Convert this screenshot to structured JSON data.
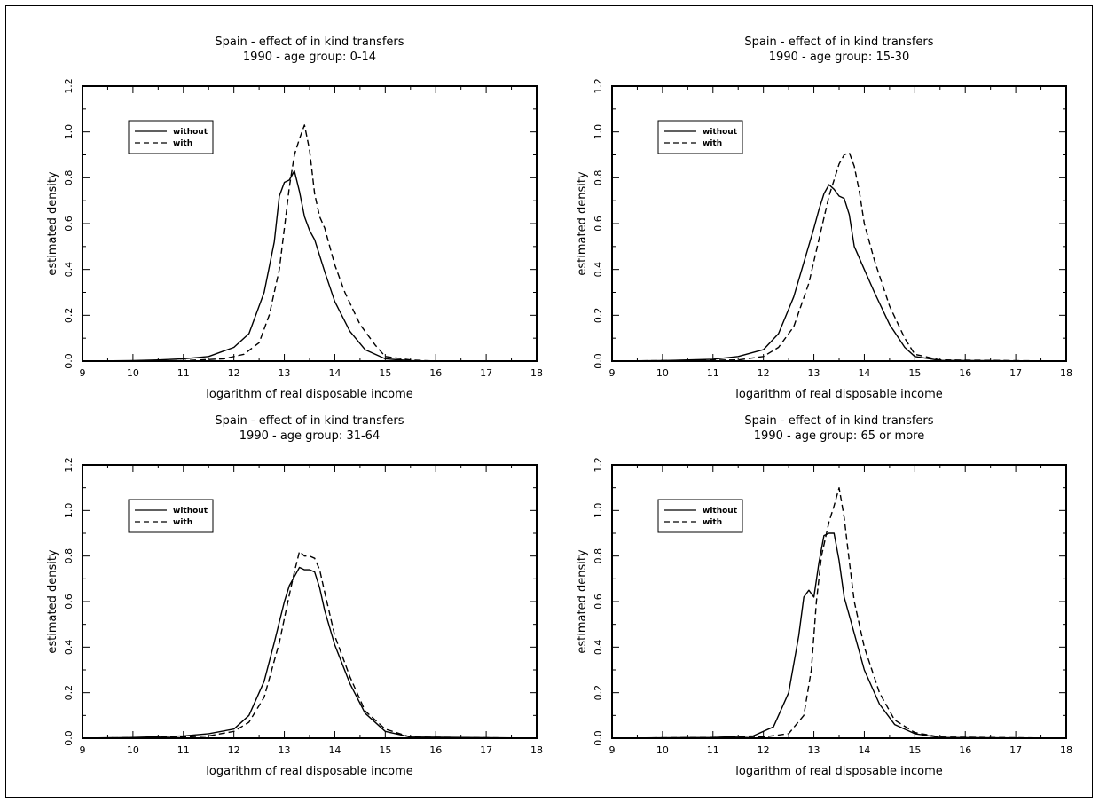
{
  "colors": {
    "background": "#ffffff",
    "ink": "#000000"
  },
  "chart_data": [
    {
      "type": "line",
      "title": "Spain - effect of in kind transfers",
      "subtitle": "1990 - age group: 0-14",
      "xlabel": "logarithm of real disposable income",
      "ylabel": "estimated density",
      "xlim": [
        9,
        18
      ],
      "ylim": [
        0,
        1.2
      ],
      "xticks": [
        9,
        10,
        11,
        12,
        13,
        14,
        15,
        16,
        17,
        18
      ],
      "yticks": [
        "0.0",
        "0.2",
        "0.4",
        "0.6",
        "0.8",
        "1.0",
        "1.2"
      ],
      "grid": false,
      "legend_position": "top-left",
      "series": [
        {
          "name": "without",
          "style": "solid",
          "x": [
            9,
            10,
            10.5,
            11,
            11.5,
            12,
            12.3,
            12.6,
            12.8,
            12.9,
            13,
            13.1,
            13.2,
            13.3,
            13.4,
            13.5,
            13.6,
            13.8,
            14,
            14.3,
            14.6,
            15,
            15.5,
            16,
            18
          ],
          "y": [
            0,
            0.002,
            0.005,
            0.01,
            0.02,
            0.06,
            0.12,
            0.3,
            0.52,
            0.72,
            0.78,
            0.79,
            0.83,
            0.74,
            0.63,
            0.57,
            0.53,
            0.39,
            0.26,
            0.13,
            0.05,
            0.01,
            0.002,
            0,
            0
          ]
        },
        {
          "name": "with",
          "style": "dashed",
          "x": [
            9,
            11,
            11.8,
            12.2,
            12.5,
            12.7,
            12.9,
            13,
            13.1,
            13.2,
            13.3,
            13.4,
            13.5,
            13.6,
            13.7,
            13.8,
            14,
            14.2,
            14.5,
            14.8,
            15,
            15.5,
            16,
            18
          ],
          "y": [
            0,
            0.002,
            0.01,
            0.03,
            0.08,
            0.2,
            0.4,
            0.58,
            0.76,
            0.9,
            0.97,
            1.03,
            0.92,
            0.73,
            0.63,
            0.58,
            0.42,
            0.3,
            0.16,
            0.07,
            0.02,
            0.005,
            0,
            0
          ]
        }
      ]
    },
    {
      "type": "line",
      "title": "Spain - effect of in kind transfers",
      "subtitle": "1990 - age group: 15-30",
      "xlabel": "logarithm of real disposable income",
      "ylabel": "estimated density",
      "xlim": [
        9,
        18
      ],
      "ylim": [
        0,
        1.2
      ],
      "xticks": [
        9,
        10,
        11,
        12,
        13,
        14,
        15,
        16,
        17,
        18
      ],
      "yticks": [
        "0.0",
        "0.2",
        "0.4",
        "0.6",
        "0.8",
        "1.0",
        "1.2"
      ],
      "grid": false,
      "legend_position": "top-left",
      "series": [
        {
          "name": "without",
          "style": "solid",
          "x": [
            9,
            10,
            11,
            11.5,
            12,
            12.3,
            12.6,
            12.8,
            13,
            13.1,
            13.2,
            13.3,
            13.4,
            13.5,
            13.6,
            13.7,
            13.8,
            14,
            14.2,
            14.5,
            14.8,
            15,
            15.5,
            18
          ],
          "y": [
            0,
            0.002,
            0.008,
            0.02,
            0.05,
            0.12,
            0.28,
            0.43,
            0.58,
            0.66,
            0.73,
            0.77,
            0.75,
            0.72,
            0.71,
            0.64,
            0.5,
            0.4,
            0.3,
            0.16,
            0.06,
            0.02,
            0.003,
            0
          ]
        },
        {
          "name": "with",
          "style": "dashed",
          "x": [
            9,
            11.5,
            12,
            12.3,
            12.6,
            12.9,
            13.1,
            13.3,
            13.5,
            13.6,
            13.7,
            13.8,
            13.9,
            14,
            14.2,
            14.5,
            14.8,
            15,
            15.5,
            18
          ],
          "y": [
            0,
            0.005,
            0.02,
            0.06,
            0.15,
            0.34,
            0.53,
            0.72,
            0.86,
            0.9,
            0.91,
            0.85,
            0.74,
            0.6,
            0.44,
            0.24,
            0.1,
            0.03,
            0.005,
            0
          ]
        }
      ]
    },
    {
      "type": "line",
      "title": "Spain - effect of in kind transfers",
      "subtitle": "1990 - age group: 31-64",
      "xlabel": "logarithm of real disposable income",
      "ylabel": "estimated density",
      "xlim": [
        9,
        18
      ],
      "ylim": [
        0,
        1.2
      ],
      "xticks": [
        9,
        10,
        11,
        12,
        13,
        14,
        15,
        16,
        17,
        18
      ],
      "yticks": [
        "0.0",
        "0.2",
        "0.4",
        "0.6",
        "0.8",
        "1.0",
        "1.2"
      ],
      "grid": false,
      "legend_position": "top-left",
      "series": [
        {
          "name": "without",
          "style": "solid",
          "x": [
            9,
            10,
            11,
            11.5,
            12,
            12.3,
            12.6,
            12.8,
            13,
            13.1,
            13.2,
            13.3,
            13.4,
            13.5,
            13.6,
            13.7,
            13.8,
            14,
            14.3,
            14.6,
            15,
            15.5,
            18
          ],
          "y": [
            0,
            0.003,
            0.01,
            0.02,
            0.04,
            0.1,
            0.25,
            0.42,
            0.6,
            0.67,
            0.71,
            0.75,
            0.74,
            0.74,
            0.73,
            0.66,
            0.56,
            0.41,
            0.24,
            0.11,
            0.03,
            0.005,
            0
          ]
        },
        {
          "name": "with",
          "style": "dashed",
          "x": [
            9,
            11,
            11.5,
            12,
            12.3,
            12.6,
            12.9,
            13.1,
            13.2,
            13.3,
            13.4,
            13.5,
            13.6,
            13.7,
            13.8,
            14,
            14.3,
            14.6,
            15,
            15.5,
            18
          ],
          "y": [
            0,
            0.005,
            0.01,
            0.03,
            0.07,
            0.18,
            0.42,
            0.63,
            0.73,
            0.82,
            0.8,
            0.8,
            0.79,
            0.74,
            0.64,
            0.45,
            0.27,
            0.12,
            0.04,
            0.005,
            0
          ]
        }
      ]
    },
    {
      "type": "line",
      "title": "Spain - effect of in kind transfers",
      "subtitle": "1990 - age group: 65 or more",
      "xlabel": "logarithm of real disposable income",
      "ylabel": "estimated density",
      "xlim": [
        9,
        18
      ],
      "ylim": [
        0,
        1.2
      ],
      "xticks": [
        9,
        10,
        11,
        12,
        13,
        14,
        15,
        16,
        17,
        18
      ],
      "yticks": [
        "0.0",
        "0.2",
        "0.4",
        "0.6",
        "0.8",
        "1.0",
        "1.2"
      ],
      "grid": false,
      "legend_position": "top-left",
      "series": [
        {
          "name": "without",
          "style": "solid",
          "x": [
            9,
            11,
            11.8,
            12.2,
            12.5,
            12.7,
            12.8,
            12.9,
            13,
            13.1,
            13.2,
            13.3,
            13.4,
            13.5,
            13.6,
            13.8,
            14,
            14.3,
            14.6,
            15,
            15.5,
            18
          ],
          "y": [
            0,
            0.003,
            0.01,
            0.05,
            0.2,
            0.45,
            0.62,
            0.65,
            0.62,
            0.77,
            0.89,
            0.9,
            0.9,
            0.78,
            0.62,
            0.46,
            0.3,
            0.15,
            0.06,
            0.02,
            0.003,
            0
          ]
        },
        {
          "name": "with",
          "style": "dashed",
          "x": [
            9,
            12,
            12.5,
            12.8,
            12.95,
            13.05,
            13.15,
            13.3,
            13.4,
            13.5,
            13.6,
            13.7,
            13.8,
            14,
            14.3,
            14.6,
            15,
            15.5,
            18
          ],
          "y": [
            0,
            0.005,
            0.02,
            0.1,
            0.3,
            0.6,
            0.8,
            0.95,
            1.02,
            1.1,
            0.97,
            0.78,
            0.6,
            0.4,
            0.2,
            0.08,
            0.025,
            0.005,
            0
          ]
        }
      ]
    }
  ]
}
